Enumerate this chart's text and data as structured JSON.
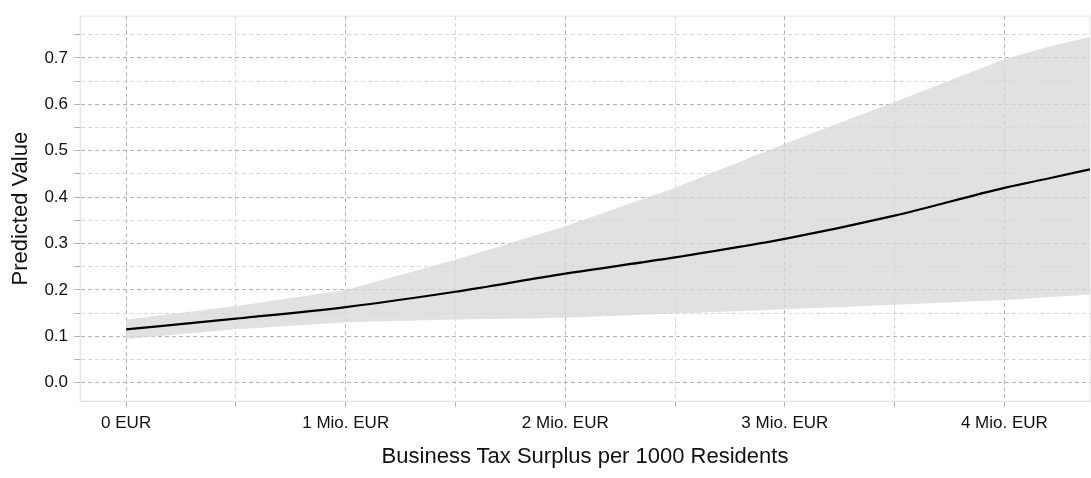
{
  "chart_data": {
    "type": "line",
    "xlabel": "Business Tax Surplus per 1000 Residents",
    "ylabel": "Predicted Value",
    "x": [
      0,
      0.5,
      1,
      1.5,
      2,
      2.5,
      3,
      3.5,
      4,
      4.2,
      4.39
    ],
    "series": [
      {
        "color": "#000000",
        "values": [
          0.115,
          0.138,
          0.163,
          0.196,
          0.235,
          0.27,
          0.31,
          0.36,
          0.42,
          0.44,
          0.46
        ],
        "lower": [
          0.094,
          0.115,
          0.13,
          0.136,
          0.14,
          0.149,
          0.158,
          0.168,
          0.178,
          0.184,
          0.19
        ],
        "upper": [
          0.136,
          0.165,
          0.2,
          0.265,
          0.337,
          0.42,
          0.515,
          0.605,
          0.697,
          0.724,
          0.745
        ]
      }
    ],
    "xlim": [
      -0.21,
      4.39
    ],
    "ylim": [
      -0.04,
      0.79
    ],
    "xticks": [
      {
        "value": 0,
        "label": "0 EUR"
      },
      {
        "value": 0.5,
        "label": null
      },
      {
        "value": 1,
        "label": "1 Mio. EUR"
      },
      {
        "value": 1.5,
        "label": null
      },
      {
        "value": 2,
        "label": "2 Mio. EUR"
      },
      {
        "value": 2.5,
        "label": null
      },
      {
        "value": 3,
        "label": "3 Mio. EUR"
      },
      {
        "value": 3.5,
        "label": null
      },
      {
        "value": 4,
        "label": "4 Mio. EUR"
      }
    ],
    "yticks": [
      {
        "value": 0,
        "label": "0.0"
      },
      {
        "value": 0.05,
        "label": null
      },
      {
        "value": 0.1,
        "label": "0.1"
      },
      {
        "value": 0.15,
        "label": null
      },
      {
        "value": 0.2,
        "label": "0.2"
      },
      {
        "value": 0.25,
        "label": null
      },
      {
        "value": 0.3,
        "label": "0.3"
      },
      {
        "value": 0.35,
        "label": null
      },
      {
        "value": 0.4,
        "label": "0.4"
      },
      {
        "value": 0.45,
        "label": null
      },
      {
        "value": 0.5,
        "label": "0.5"
      },
      {
        "value": 0.55,
        "label": null
      },
      {
        "value": 0.6,
        "label": "0.6"
      },
      {
        "value": 0.65,
        "label": null
      },
      {
        "value": 0.7,
        "label": "0.7"
      },
      {
        "value": 0.75,
        "label": null
      }
    ],
    "grid": true,
    "legend": false,
    "marker": "none",
    "line_style": "solid"
  }
}
